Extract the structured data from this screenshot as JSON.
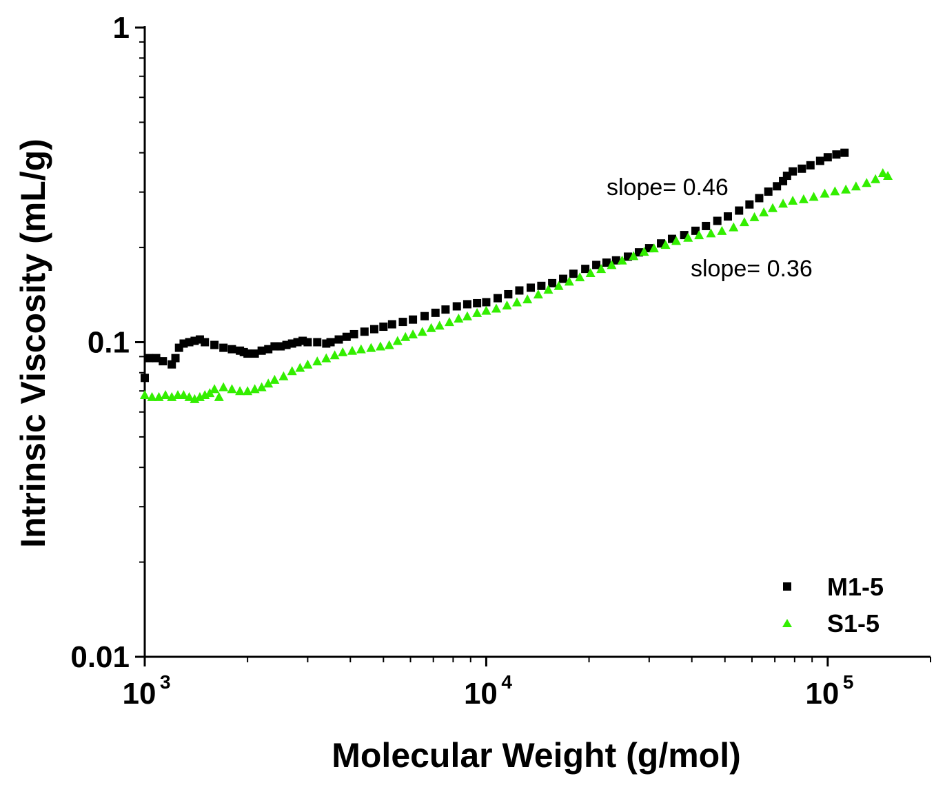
{
  "chart_data": {
    "type": "scatter",
    "title": "",
    "xlabel": "Molecular Weight (g/mol)",
    "ylabel": "Intrinsic Viscosity (mL/g)",
    "xscale": "log",
    "yscale": "log",
    "xlim": [
      1000,
      200000
    ],
    "ylim": [
      0.01,
      1
    ],
    "x_ticks": [
      {
        "base": "10",
        "exp": "3"
      },
      {
        "base": "10",
        "exp": "4"
      },
      {
        "base": "10",
        "exp": "5"
      }
    ],
    "y_ticks": [
      "0.01",
      "0.1",
      "1"
    ],
    "legend_position": "bottom-right",
    "annotations": [
      {
        "text": "slope= 0.46",
        "x": 27000,
        "y": 0.3
      },
      {
        "text": "slope= 0.36",
        "x": 48000,
        "y": 0.165
      }
    ],
    "series": [
      {
        "name": "M1-5",
        "marker": "square",
        "color": "#000000",
        "points": [
          [
            1000,
            0.077
          ],
          [
            1030,
            0.089
          ],
          [
            1080,
            0.089
          ],
          [
            1130,
            0.087
          ],
          [
            1200,
            0.085
          ],
          [
            1230,
            0.089
          ],
          [
            1260,
            0.096
          ],
          [
            1300,
            0.099
          ],
          [
            1350,
            0.1
          ],
          [
            1400,
            0.101
          ],
          [
            1450,
            0.102
          ],
          [
            1500,
            0.1
          ],
          [
            1600,
            0.098
          ],
          [
            1700,
            0.096
          ],
          [
            1800,
            0.095
          ],
          [
            1900,
            0.094
          ],
          [
            1950,
            0.093
          ],
          [
            2000,
            0.092
          ],
          [
            2100,
            0.092
          ],
          [
            2200,
            0.094
          ],
          [
            2300,
            0.095
          ],
          [
            2400,
            0.097
          ],
          [
            2500,
            0.097
          ],
          [
            2600,
            0.098
          ],
          [
            2700,
            0.099
          ],
          [
            2800,
            0.1
          ],
          [
            2900,
            0.101
          ],
          [
            3000,
            0.1
          ],
          [
            3200,
            0.1
          ],
          [
            3400,
            0.099
          ],
          [
            3500,
            0.1
          ],
          [
            3700,
            0.102
          ],
          [
            3900,
            0.104
          ],
          [
            4100,
            0.106
          ],
          [
            4400,
            0.108
          ],
          [
            4700,
            0.11
          ],
          [
            5000,
            0.112
          ],
          [
            5300,
            0.114
          ],
          [
            5700,
            0.116
          ],
          [
            6100,
            0.118
          ],
          [
            6600,
            0.121
          ],
          [
            7100,
            0.124
          ],
          [
            7600,
            0.127
          ],
          [
            8200,
            0.13
          ],
          [
            8800,
            0.132
          ],
          [
            9400,
            0.133
          ],
          [
            10000,
            0.134
          ],
          [
            10800,
            0.138
          ],
          [
            11600,
            0.142
          ],
          [
            12500,
            0.146
          ],
          [
            13500,
            0.149
          ],
          [
            14500,
            0.151
          ],
          [
            15600,
            0.154
          ],
          [
            16800,
            0.159
          ],
          [
            18000,
            0.165
          ],
          [
            19500,
            0.171
          ],
          [
            21000,
            0.176
          ],
          [
            22500,
            0.179
          ],
          [
            24000,
            0.182
          ],
          [
            26000,
            0.187
          ],
          [
            28000,
            0.193
          ],
          [
            30000,
            0.199
          ],
          [
            32500,
            0.206
          ],
          [
            35000,
            0.213
          ],
          [
            38000,
            0.219
          ],
          [
            41000,
            0.226
          ],
          [
            44000,
            0.234
          ],
          [
            47500,
            0.243
          ],
          [
            51000,
            0.251
          ],
          [
            55000,
            0.262
          ],
          [
            59000,
            0.274
          ],
          [
            63000,
            0.287
          ],
          [
            67000,
            0.301
          ],
          [
            71000,
            0.313
          ],
          [
            74000,
            0.325
          ],
          [
            76000,
            0.338
          ],
          [
            79000,
            0.349
          ],
          [
            84000,
            0.356
          ],
          [
            89000,
            0.365
          ],
          [
            95000,
            0.377
          ],
          [
            100000,
            0.387
          ],
          [
            106000,
            0.395
          ],
          [
            112000,
            0.4
          ]
        ]
      },
      {
        "name": "S1-5",
        "marker": "triangle",
        "color": "#33ee00",
        "points": [
          [
            1000,
            0.068
          ],
          [
            1050,
            0.067
          ],
          [
            1100,
            0.067
          ],
          [
            1150,
            0.068
          ],
          [
            1200,
            0.067
          ],
          [
            1250,
            0.068
          ],
          [
            1300,
            0.068
          ],
          [
            1350,
            0.067
          ],
          [
            1400,
            0.066
          ],
          [
            1450,
            0.067
          ],
          [
            1500,
            0.068
          ],
          [
            1550,
            0.069
          ],
          [
            1600,
            0.071
          ],
          [
            1650,
            0.067
          ],
          [
            1700,
            0.072
          ],
          [
            1800,
            0.071
          ],
          [
            1900,
            0.07
          ],
          [
            2000,
            0.07
          ],
          [
            2100,
            0.071
          ],
          [
            2200,
            0.072
          ],
          [
            2300,
            0.074
          ],
          [
            2400,
            0.076
          ],
          [
            2550,
            0.078
          ],
          [
            2700,
            0.081
          ],
          [
            2850,
            0.083
          ],
          [
            3000,
            0.085
          ],
          [
            3200,
            0.087
          ],
          [
            3400,
            0.089
          ],
          [
            3600,
            0.091
          ],
          [
            3800,
            0.093
          ],
          [
            4050,
            0.094
          ],
          [
            4300,
            0.095
          ],
          [
            4600,
            0.096
          ],
          [
            4900,
            0.097
          ],
          [
            5200,
            0.098
          ],
          [
            5500,
            0.101
          ],
          [
            5800,
            0.104
          ],
          [
            6100,
            0.106
          ],
          [
            6500,
            0.108
          ],
          [
            6900,
            0.111
          ],
          [
            7300,
            0.113
          ],
          [
            7800,
            0.116
          ],
          [
            8300,
            0.119
          ],
          [
            8800,
            0.121
          ],
          [
            9400,
            0.124
          ],
          [
            10000,
            0.126
          ],
          [
            10700,
            0.128
          ],
          [
            11500,
            0.131
          ],
          [
            12300,
            0.134
          ],
          [
            13200,
            0.137
          ],
          [
            14200,
            0.142
          ],
          [
            15200,
            0.147
          ],
          [
            16300,
            0.151
          ],
          [
            17500,
            0.156
          ],
          [
            18800,
            0.161
          ],
          [
            20200,
            0.166
          ],
          [
            21700,
            0.171
          ],
          [
            23300,
            0.176
          ],
          [
            25000,
            0.182
          ],
          [
            27000,
            0.188
          ],
          [
            29000,
            0.194
          ],
          [
            31000,
            0.199
          ],
          [
            33500,
            0.204
          ],
          [
            36000,
            0.21
          ],
          [
            39000,
            0.215
          ],
          [
            42000,
            0.219
          ],
          [
            45500,
            0.222
          ],
          [
            49000,
            0.226
          ],
          [
            53000,
            0.232
          ],
          [
            57000,
            0.241
          ],
          [
            61000,
            0.25
          ],
          [
            65000,
            0.259
          ],
          [
            69000,
            0.267
          ],
          [
            74000,
            0.276
          ],
          [
            79000,
            0.282
          ],
          [
            85000,
            0.285
          ],
          [
            91000,
            0.29
          ],
          [
            98000,
            0.297
          ],
          [
            105000,
            0.302
          ],
          [
            113000,
            0.306
          ],
          [
            121000,
            0.313
          ],
          [
            130000,
            0.321
          ],
          [
            138000,
            0.33
          ],
          [
            145000,
            0.345
          ],
          [
            150000,
            0.338
          ]
        ]
      }
    ]
  }
}
